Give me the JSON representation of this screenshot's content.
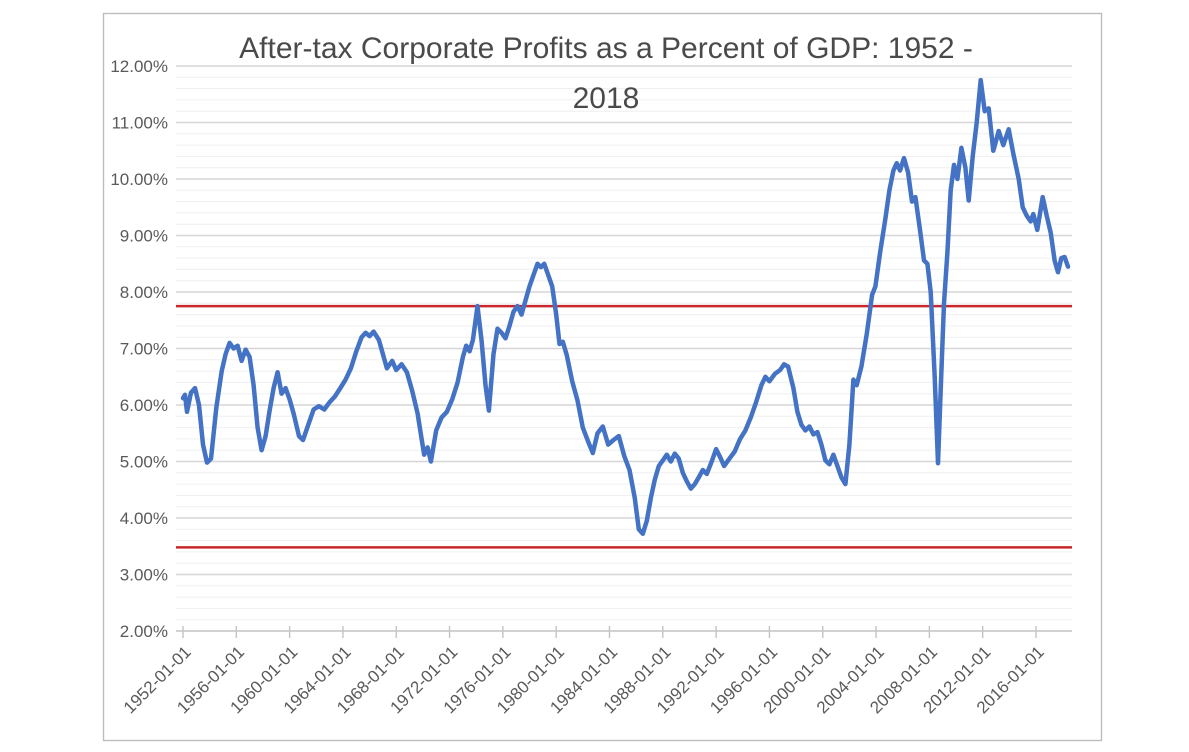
{
  "figure": {
    "background": "#ffffff",
    "border_color": "#bdbdbd"
  },
  "chart_data": {
    "type": "line",
    "title": "After-tax Corporate Profits as a Percent of GDP: 1952 - 2018",
    "title_lines": [
      "After-tax Corporate Profits as a Percent of GDP: 1952 -",
      "2018"
    ],
    "title_color": "#4a4a4a",
    "grid": {
      "horizontal_only": true,
      "major_color": "#d6d6d6",
      "minor_color": "#efefef",
      "axis_color": "#c3c3c3"
    },
    "y_axis": {
      "min": 2,
      "max": 12,
      "major_step": 1,
      "minor_step": 0.2,
      "unit": "%",
      "label_color": "#5a5a5a",
      "tick_values": [
        12,
        11,
        10,
        9,
        8,
        7,
        6,
        5,
        4,
        3,
        2
      ],
      "tick_labels": [
        "12.00%",
        "11.00%",
        "10.00%",
        "9.00%",
        "8.00%",
        "7.00%",
        "6.00%",
        "5.00%",
        "4.00%",
        "3.00%",
        "2.00%"
      ]
    },
    "x_axis": {
      "start_year": 1952,
      "end_year": 2018.75,
      "label_color": "#5a5a5a",
      "tick_years": [
        1952,
        1956,
        1960,
        1964,
        1968,
        1972,
        1976,
        1980,
        1984,
        1988,
        1992,
        1996,
        2000,
        2004,
        2008,
        2012,
        2016
      ],
      "tick_labels": [
        "1952-01-01",
        "1956-01-01",
        "1960-01-01",
        "1964-01-01",
        "1968-01-01",
        "1972-01-01",
        "1976-01-01",
        "1980-01-01",
        "1984-01-01",
        "1988-01-01",
        "1992-01-01",
        "1996-01-01",
        "2000-01-01",
        "2004-01-01",
        "2008-01-01",
        "2012-01-01",
        "2016-01-01"
      ]
    },
    "legend": {
      "visible": false
    },
    "reference_lines": [
      {
        "name": "upper-reference-line",
        "value": 7.75,
        "color": "#c9292e",
        "line_width": 2.6
      },
      {
        "name": "lower-reference-line",
        "value": 3.48,
        "color": "#c9292e",
        "line_width": 2.6
      }
    ],
    "series": [
      {
        "name": "After-tax corporate profits as a percent of GDP",
        "color": "#4472c4",
        "line_width": 4.5,
        "points": [
          [
            1952.0,
            6.12
          ],
          [
            1952.15,
            6.18
          ],
          [
            1952.3,
            5.88
          ],
          [
            1952.6,
            6.22
          ],
          [
            1952.9,
            6.3
          ],
          [
            1953.2,
            6.0
          ],
          [
            1953.5,
            5.3
          ],
          [
            1953.8,
            4.98
          ],
          [
            1954.1,
            5.05
          ],
          [
            1954.5,
            5.95
          ],
          [
            1954.9,
            6.6
          ],
          [
            1955.2,
            6.9
          ],
          [
            1955.5,
            7.1
          ],
          [
            1955.8,
            7.0
          ],
          [
            1956.1,
            7.05
          ],
          [
            1956.4,
            6.78
          ],
          [
            1956.7,
            6.98
          ],
          [
            1957.0,
            6.85
          ],
          [
            1957.3,
            6.35
          ],
          [
            1957.6,
            5.6
          ],
          [
            1957.9,
            5.2
          ],
          [
            1958.2,
            5.45
          ],
          [
            1958.5,
            5.9
          ],
          [
            1958.8,
            6.3
          ],
          [
            1959.1,
            6.58
          ],
          [
            1959.4,
            6.2
          ],
          [
            1959.7,
            6.3
          ],
          [
            1960.0,
            6.1
          ],
          [
            1960.3,
            5.85
          ],
          [
            1960.7,
            5.45
          ],
          [
            1961.0,
            5.38
          ],
          [
            1961.4,
            5.65
          ],
          [
            1961.8,
            5.92
          ],
          [
            1962.2,
            5.98
          ],
          [
            1962.6,
            5.92
          ],
          [
            1963.0,
            6.05
          ],
          [
            1963.4,
            6.15
          ],
          [
            1963.8,
            6.3
          ],
          [
            1964.2,
            6.45
          ],
          [
            1964.6,
            6.65
          ],
          [
            1965.0,
            6.95
          ],
          [
            1965.4,
            7.2
          ],
          [
            1965.7,
            7.28
          ],
          [
            1966.0,
            7.22
          ],
          [
            1966.3,
            7.3
          ],
          [
            1966.7,
            7.15
          ],
          [
            1967.0,
            6.9
          ],
          [
            1967.3,
            6.65
          ],
          [
            1967.7,
            6.78
          ],
          [
            1968.0,
            6.62
          ],
          [
            1968.4,
            6.72
          ],
          [
            1968.8,
            6.58
          ],
          [
            1969.2,
            6.25
          ],
          [
            1969.6,
            5.85
          ],
          [
            1969.9,
            5.4
          ],
          [
            1970.1,
            5.12
          ],
          [
            1970.35,
            5.25
          ],
          [
            1970.6,
            5.0
          ],
          [
            1971.0,
            5.55
          ],
          [
            1971.4,
            5.78
          ],
          [
            1971.8,
            5.88
          ],
          [
            1972.2,
            6.1
          ],
          [
            1972.6,
            6.4
          ],
          [
            1973.0,
            6.85
          ],
          [
            1973.25,
            7.05
          ],
          [
            1973.5,
            6.95
          ],
          [
            1973.75,
            7.15
          ],
          [
            1974.1,
            7.75
          ],
          [
            1974.4,
            7.15
          ],
          [
            1974.7,
            6.35
          ],
          [
            1974.95,
            5.9
          ],
          [
            1975.3,
            6.9
          ],
          [
            1975.6,
            7.35
          ],
          [
            1975.9,
            7.28
          ],
          [
            1976.2,
            7.18
          ],
          [
            1976.5,
            7.4
          ],
          [
            1976.8,
            7.65
          ],
          [
            1977.1,
            7.75
          ],
          [
            1977.4,
            7.6
          ],
          [
            1977.7,
            7.85
          ],
          [
            1978.0,
            8.1
          ],
          [
            1978.3,
            8.3
          ],
          [
            1978.6,
            8.5
          ],
          [
            1978.85,
            8.44
          ],
          [
            1979.1,
            8.5
          ],
          [
            1979.4,
            8.3
          ],
          [
            1979.7,
            8.1
          ],
          [
            1980.0,
            7.6
          ],
          [
            1980.25,
            7.08
          ],
          [
            1980.5,
            7.12
          ],
          [
            1980.8,
            6.88
          ],
          [
            1981.2,
            6.42
          ],
          [
            1981.6,
            6.08
          ],
          [
            1982.0,
            5.6
          ],
          [
            1982.4,
            5.35
          ],
          [
            1982.75,
            5.15
          ],
          [
            1983.1,
            5.5
          ],
          [
            1983.5,
            5.62
          ],
          [
            1983.9,
            5.3
          ],
          [
            1984.3,
            5.38
          ],
          [
            1984.7,
            5.45
          ],
          [
            1985.1,
            5.1
          ],
          [
            1985.5,
            4.85
          ],
          [
            1985.9,
            4.35
          ],
          [
            1986.2,
            3.8
          ],
          [
            1986.5,
            3.72
          ],
          [
            1986.8,
            3.95
          ],
          [
            1987.1,
            4.35
          ],
          [
            1987.4,
            4.68
          ],
          [
            1987.7,
            4.92
          ],
          [
            1988.0,
            5.02
          ],
          [
            1988.3,
            5.12
          ],
          [
            1988.6,
            5.0
          ],
          [
            1988.9,
            5.14
          ],
          [
            1989.2,
            5.05
          ],
          [
            1989.5,
            4.8
          ],
          [
            1989.8,
            4.65
          ],
          [
            1990.1,
            4.52
          ],
          [
            1990.4,
            4.6
          ],
          [
            1990.7,
            4.72
          ],
          [
            1991.0,
            4.85
          ],
          [
            1991.3,
            4.78
          ],
          [
            1991.7,
            5.02
          ],
          [
            1992.0,
            5.22
          ],
          [
            1992.3,
            5.08
          ],
          [
            1992.6,
            4.92
          ],
          [
            1993.0,
            5.05
          ],
          [
            1993.4,
            5.18
          ],
          [
            1993.8,
            5.4
          ],
          [
            1994.2,
            5.55
          ],
          [
            1994.6,
            5.78
          ],
          [
            1995.0,
            6.05
          ],
          [
            1995.4,
            6.35
          ],
          [
            1995.7,
            6.5
          ],
          [
            1996.0,
            6.42
          ],
          [
            1996.4,
            6.55
          ],
          [
            1996.8,
            6.62
          ],
          [
            1997.1,
            6.72
          ],
          [
            1997.4,
            6.68
          ],
          [
            1997.8,
            6.3
          ],
          [
            1998.1,
            5.88
          ],
          [
            1998.4,
            5.65
          ],
          [
            1998.7,
            5.55
          ],
          [
            1999.0,
            5.62
          ],
          [
            1999.3,
            5.48
          ],
          [
            1999.6,
            5.52
          ],
          [
            1999.9,
            5.3
          ],
          [
            2000.2,
            5.02
          ],
          [
            2000.5,
            4.95
          ],
          [
            2000.8,
            5.12
          ],
          [
            2001.1,
            4.92
          ],
          [
            2001.4,
            4.72
          ],
          [
            2001.7,
            4.6
          ],
          [
            2002.0,
            5.3
          ],
          [
            2002.3,
            6.45
          ],
          [
            2002.55,
            6.35
          ],
          [
            2002.9,
            6.68
          ],
          [
            2003.3,
            7.25
          ],
          [
            2003.7,
            7.95
          ],
          [
            2003.95,
            8.1
          ],
          [
            2004.3,
            8.7
          ],
          [
            2004.7,
            9.3
          ],
          [
            2005.0,
            9.8
          ],
          [
            2005.3,
            10.15
          ],
          [
            2005.55,
            10.28
          ],
          [
            2005.8,
            10.15
          ],
          [
            2006.1,
            10.37
          ],
          [
            2006.4,
            10.12
          ],
          [
            2006.7,
            9.6
          ],
          [
            2006.95,
            9.68
          ],
          [
            2007.3,
            9.1
          ],
          [
            2007.6,
            8.56
          ],
          [
            2007.85,
            8.5
          ],
          [
            2008.1,
            8.0
          ],
          [
            2008.4,
            6.5
          ],
          [
            2008.65,
            4.97
          ],
          [
            2008.9,
            6.6
          ],
          [
            2009.1,
            7.8
          ],
          [
            2009.35,
            8.7
          ],
          [
            2009.6,
            9.8
          ],
          [
            2009.85,
            10.25
          ],
          [
            2010.1,
            10.0
          ],
          [
            2010.4,
            10.55
          ],
          [
            2010.7,
            10.2
          ],
          [
            2010.95,
            9.62
          ],
          [
            2011.25,
            10.4
          ],
          [
            2011.55,
            11.0
          ],
          [
            2011.85,
            11.75
          ],
          [
            2012.15,
            11.2
          ],
          [
            2012.45,
            11.25
          ],
          [
            2012.8,
            10.5
          ],
          [
            2013.2,
            10.85
          ],
          [
            2013.55,
            10.6
          ],
          [
            2013.95,
            10.88
          ],
          [
            2014.3,
            10.45
          ],
          [
            2014.7,
            10.0
          ],
          [
            2015.0,
            9.5
          ],
          [
            2015.3,
            9.35
          ],
          [
            2015.6,
            9.25
          ],
          [
            2015.8,
            9.38
          ],
          [
            2016.1,
            9.1
          ],
          [
            2016.5,
            9.68
          ],
          [
            2016.8,
            9.35
          ],
          [
            2017.1,
            9.05
          ],
          [
            2017.4,
            8.55
          ],
          [
            2017.65,
            8.35
          ],
          [
            2017.9,
            8.6
          ],
          [
            2018.15,
            8.62
          ],
          [
            2018.4,
            8.45
          ]
        ]
      }
    ]
  }
}
